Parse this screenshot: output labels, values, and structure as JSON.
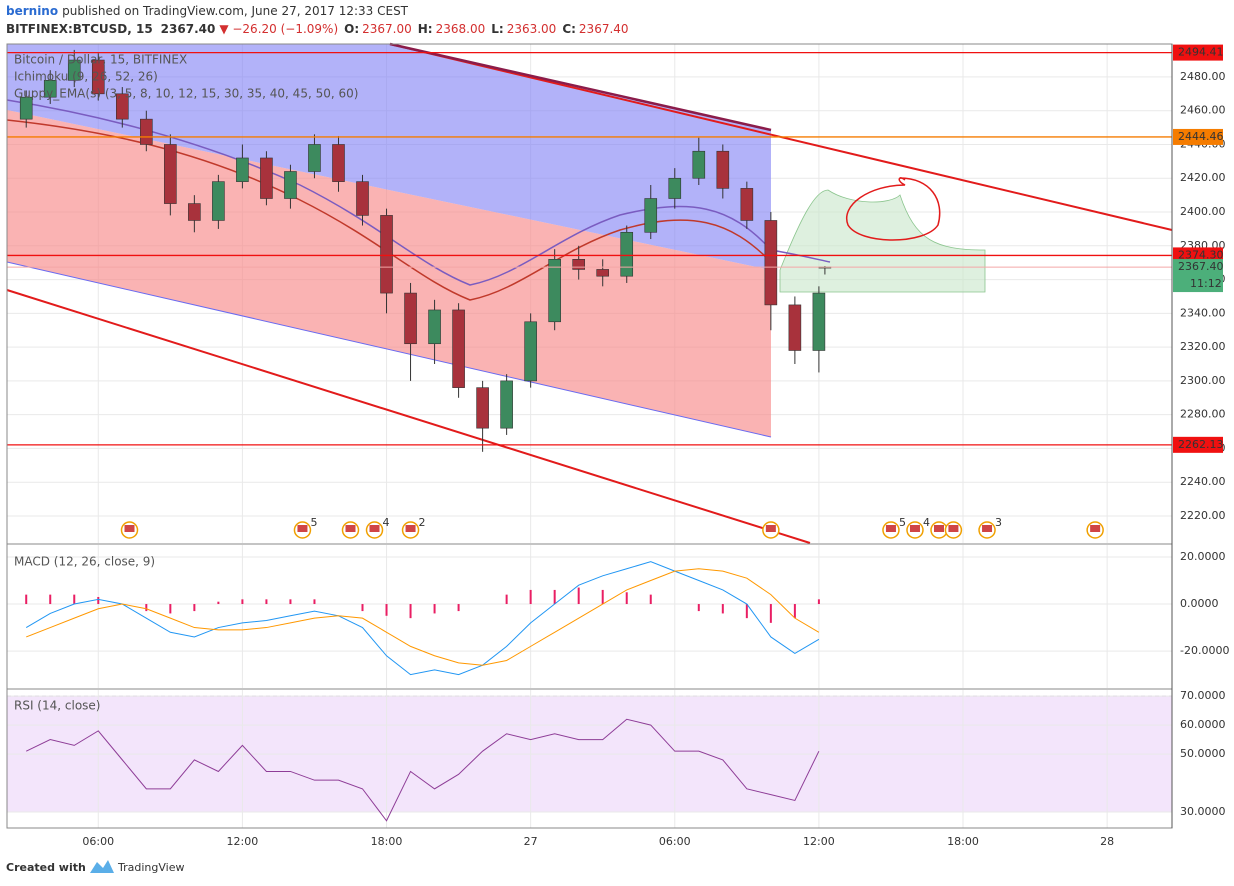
{
  "header": {
    "author": "bernino",
    "published": "published on TradingView.com, June 27, 2017 12:33 CEST",
    "symbol": "BITFINEX:BTCUSD, 15",
    "last": "2367.40",
    "change": "▼ −26.20 (−1.09%)",
    "ohlc": [
      {
        "label": "O:",
        "value": "2367.00"
      },
      {
        "label": "H:",
        "value": "2368.00"
      },
      {
        "label": "L:",
        "value": "2363.00"
      },
      {
        "label": "C:",
        "value": "2367.40"
      }
    ]
  },
  "footer": {
    "created": "Created with",
    "brand": "TradingView"
  },
  "chart_data": [
    {
      "type": "candlestick",
      "legend": [
        "Bitcoin / Dollar, 15, BITFINEX",
        "Ichimoku (9, 26, 52, 26)",
        "Guppy_EMA(s) (3, 5, 8, 10, 12, 15, 30, 35, 40, 45, 50, 60)"
      ],
      "x": [
        3,
        4,
        5,
        6,
        7,
        8,
        9,
        10,
        11,
        12,
        13,
        14,
        15,
        16,
        17,
        18,
        19,
        20,
        21,
        22,
        23,
        24,
        25,
        26,
        27,
        28,
        29,
        30,
        31,
        32,
        33,
        34,
        35,
        36,
        36.25
      ],
      "open": [
        2455,
        2468,
        2478,
        2490,
        2470,
        2455,
        2440,
        2405,
        2395,
        2418,
        2432,
        2408,
        2424,
        2440,
        2418,
        2398,
        2352,
        2322,
        2342,
        2296,
        2272,
        2300,
        2335,
        2372,
        2366,
        2362,
        2388,
        2408,
        2420,
        2436,
        2414,
        2395,
        2345,
        2318,
        2367
      ],
      "high": [
        2472,
        2484,
        2496,
        2494,
        2474,
        2460,
        2446,
        2410,
        2422,
        2440,
        2436,
        2428,
        2446,
        2445,
        2422,
        2402,
        2358,
        2348,
        2346,
        2300,
        2304,
        2340,
        2378,
        2380,
        2372,
        2392,
        2416,
        2426,
        2444,
        2440,
        2418,
        2400,
        2350,
        2356,
        2368
      ],
      "low": [
        2450,
        2464,
        2474,
        2466,
        2450,
        2436,
        2398,
        2388,
        2390,
        2414,
        2404,
        2402,
        2420,
        2412,
        2392,
        2340,
        2300,
        2310,
        2290,
        2258,
        2268,
        2296,
        2330,
        2360,
        2356,
        2358,
        2384,
        2402,
        2416,
        2408,
        2390,
        2330,
        2310,
        2305,
        2363
      ],
      "close": [
        2468,
        2478,
        2490,
        2470,
        2455,
        2440,
        2405,
        2395,
        2418,
        2432,
        2408,
        2424,
        2440,
        2418,
        2398,
        2352,
        2322,
        2342,
        2296,
        2272,
        2300,
        2335,
        2372,
        2366,
        2362,
        2388,
        2408,
        2420,
        2436,
        2414,
        2395,
        2345,
        2318,
        2352,
        2367.4
      ],
      "up_color": "#3d8a5e",
      "down_color": "#a8323c",
      "xlim": [
        2.2,
        50.7
      ],
      "xticks": [
        {
          "value": 6,
          "label": "06:00"
        },
        {
          "value": 12,
          "label": "12:00"
        },
        {
          "value": 18,
          "label": "18:00"
        },
        {
          "value": 24,
          "label": "27"
        },
        {
          "value": 30,
          "label": "06:00"
        },
        {
          "value": 36,
          "label": "12:00"
        },
        {
          "value": 42,
          "label": "18:00"
        },
        {
          "value": 48,
          "label": "28"
        }
      ],
      "ylim": [
        2204,
        2499.5
      ],
      "yticks": [
        {
          "value": 2220,
          "label": "2220.00"
        },
        {
          "value": 2240,
          "label": "2240.00"
        },
        {
          "value": 2260,
          "label": "2260.00"
        },
        {
          "value": 2280,
          "label": "2280.00"
        },
        {
          "value": 2300,
          "label": "2300.00"
        },
        {
          "value": 2320,
          "label": "2320.00"
        },
        {
          "value": 2340,
          "label": "2340.00"
        },
        {
          "value": 2360,
          "label": "2360.00"
        },
        {
          "value": 2380,
          "label": "2380.00"
        },
        {
          "value": 2400,
          "label": "2400.00"
        },
        {
          "value": 2420,
          "label": "2420.00"
        },
        {
          "value": 2440,
          "label": "2440.00"
        },
        {
          "value": 2460,
          "label": "2460.00"
        },
        {
          "value": 2480,
          "label": "2480.00"
        }
      ],
      "price_levels": [
        {
          "value": 2494.41,
          "label": "2494.41",
          "color": "#f01010"
        },
        {
          "value": 2444.46,
          "label": "2444.46",
          "color": "#f57c00"
        },
        {
          "value": 2374.3,
          "label": "2374.30",
          "color": "#f01010"
        },
        {
          "value": 2262.13,
          "label": "2262.13",
          "color": "#f01010"
        }
      ],
      "current_price": {
        "value": 2367.4,
        "label": "2367.40",
        "color": "#4caf7a"
      },
      "countdown": "11:12",
      "event_x": [
        7.3,
        14.5,
        16.5,
        17.5,
        19,
        34,
        39,
        40,
        41,
        41.6,
        43,
        47.5
      ],
      "event_labels": [
        null,
        "5",
        null,
        "4",
        "2",
        null,
        "5",
        "4",
        null,
        null,
        "3",
        null
      ],
      "grid": true
    },
    {
      "type": "macd",
      "title": "MACD (12, 26, close, 9)",
      "x": [
        3,
        4,
        5,
        6,
        7,
        8,
        9,
        10,
        11,
        12,
        13,
        14,
        15,
        16,
        17,
        18,
        19,
        20,
        21,
        22,
        23,
        24,
        25,
        26,
        27,
        28,
        29,
        30,
        31,
        32,
        33,
        34,
        35,
        36
      ],
      "series": [
        {
          "color": "#2196f3",
          "values": [
            -10,
            -4,
            0,
            2,
            0,
            -6,
            -12,
            -14,
            -10,
            -8,
            -7,
            -5,
            -3,
            -5,
            -10,
            -22,
            -30,
            -28,
            -30,
            -26,
            -18,
            -8,
            0,
            8,
            12,
            15,
            18,
            14,
            10,
            6,
            0,
            -14,
            -21,
            -15
          ]
        },
        {
          "color": "#ff9800",
          "values": [
            -14,
            -10,
            -6,
            -2,
            0,
            -2,
            -6,
            -10,
            -11,
            -11,
            -10,
            -8,
            -6,
            -5,
            -6,
            -12,
            -18,
            -22,
            -25,
            -26,
            -24,
            -18,
            -12,
            -6,
            0,
            6,
            10,
            14,
            15,
            14,
            11,
            4,
            -6,
            -12
          ]
        }
      ],
      "histogram": {
        "color": "#e91e63",
        "values": [
          4,
          4,
          4,
          3,
          0,
          -3,
          -4,
          -3,
          1,
          2,
          2,
          2,
          2,
          0,
          -3,
          -5,
          -6,
          -4,
          -3,
          0,
          4,
          6,
          6,
          7,
          6,
          5,
          4,
          0,
          -3,
          -4,
          -6,
          -8,
          -6,
          2
        ]
      },
      "xlim": [
        2.2,
        50.7
      ],
      "ylim": [
        -35.7,
        25.1
      ],
      "yticks": [
        {
          "value": 20,
          "label": "20.0000"
        },
        {
          "value": 0,
          "label": "0.0000"
        },
        {
          "value": -20,
          "label": "-20.0000"
        }
      ],
      "grid": true
    },
    {
      "type": "line",
      "title": "RSI (14, close)",
      "x": [
        3,
        4,
        5,
        6,
        7,
        8,
        9,
        10,
        11,
        12,
        13,
        14,
        15,
        16,
        17,
        18,
        19,
        20,
        21,
        22,
        23,
        24,
        25,
        26,
        27,
        28,
        29,
        30,
        31,
        32,
        33,
        34,
        35,
        36
      ],
      "series": [
        {
          "color": "#8e3d97",
          "values": [
            51,
            55,
            53,
            58,
            48,
            38,
            38,
            48,
            44,
            53,
            44,
            44,
            41,
            41,
            38,
            27,
            44,
            38,
            43,
            51,
            57,
            55,
            57,
            55,
            55,
            62,
            60,
            51,
            51,
            48,
            38,
            36,
            34,
            51
          ]
        }
      ],
      "band": [
        30,
        70
      ],
      "band_color": "#f3e5fb",
      "xlim": [
        2.2,
        50.7
      ],
      "ylim": [
        24.5,
        72.1
      ],
      "yticks": [
        {
          "value": 70,
          "label": "70.0000"
        },
        {
          "value": 60,
          "label": "60.0000"
        },
        {
          "value": 50,
          "label": "50.0000"
        },
        {
          "value": 30,
          "label": "30.0000"
        }
      ],
      "grid": true
    }
  ]
}
